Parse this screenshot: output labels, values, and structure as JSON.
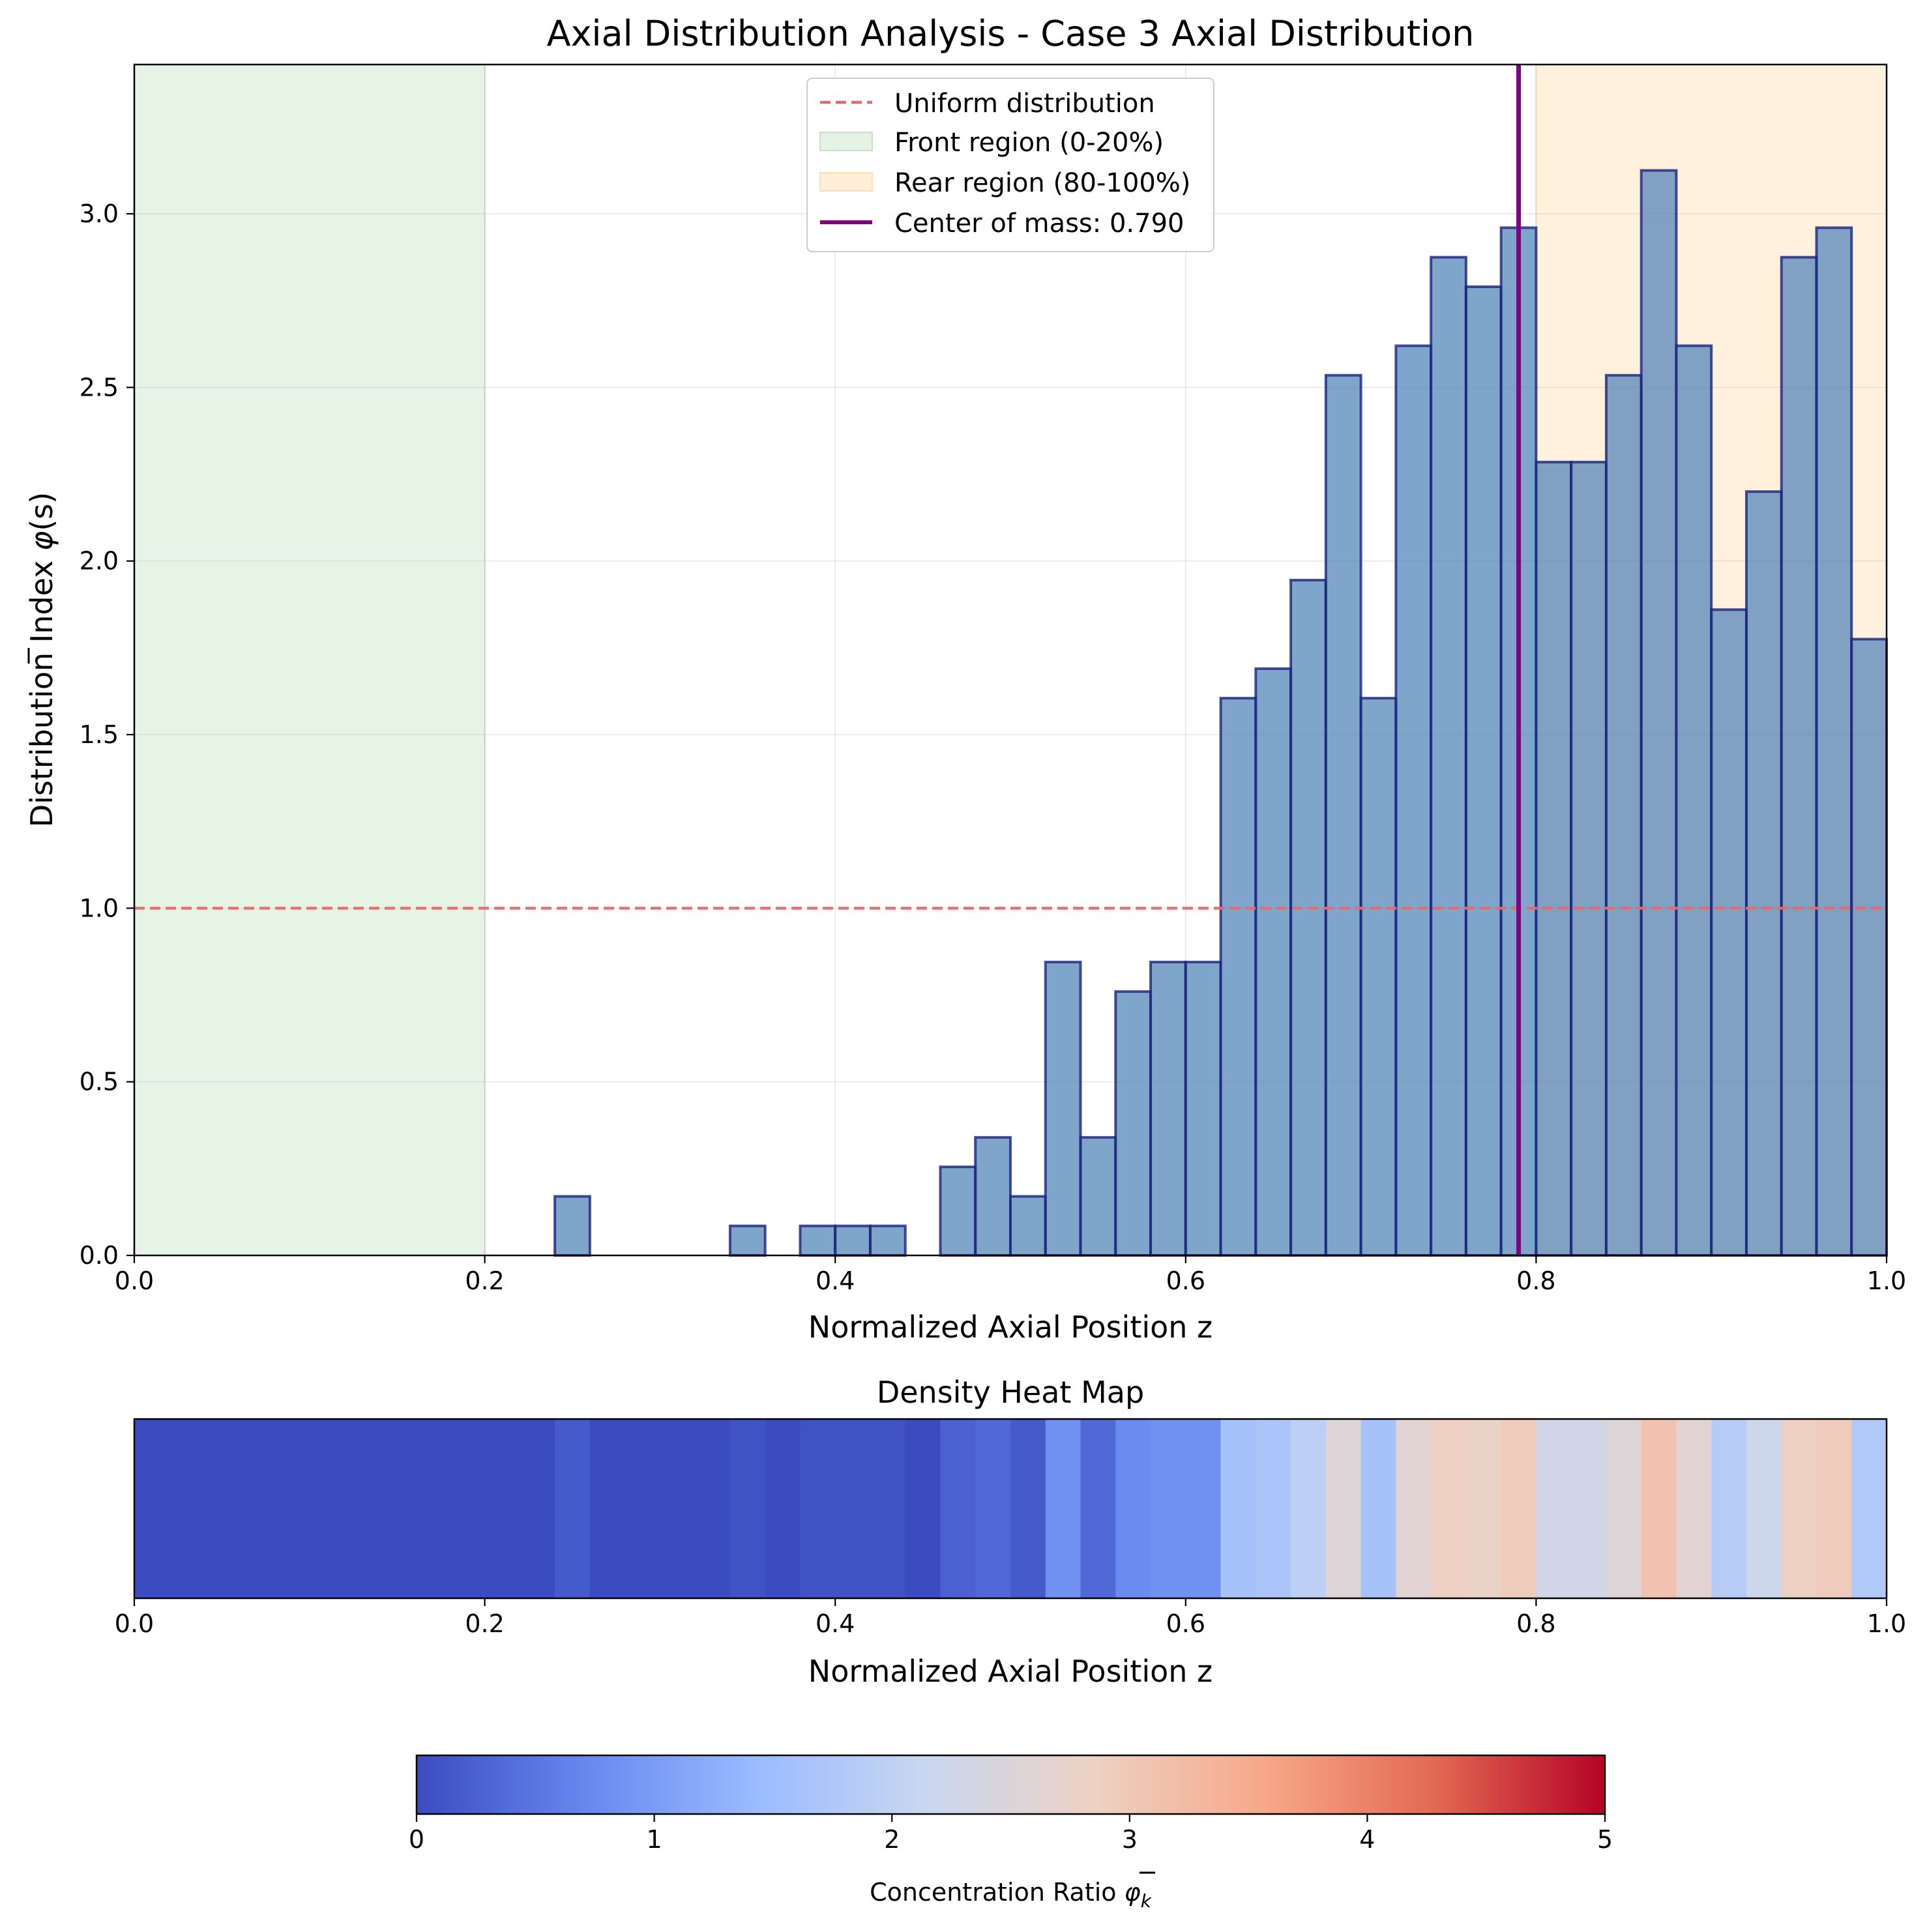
{
  "chart_data": [
    {
      "type": "bar",
      "title": "Axial Distribution Analysis - Case 3 Axial Distribution",
      "xlabel": "Normalized Axial Position z",
      "ylabel_prefix": "Distribution Index ",
      "ylabel_symbol": "φ",
      "ylabel_suffix": "(s)",
      "xlim": [
        0,
        1
      ],
      "ylim": [
        0,
        3.43
      ],
      "xticks": [
        0.0,
        0.2,
        0.4,
        0.6,
        0.8,
        1.0
      ],
      "xtick_labels": [
        "0.0",
        "0.2",
        "0.4",
        "0.6",
        "0.8",
        "1.0"
      ],
      "yticks": [
        0.0,
        0.5,
        1.0,
        1.5,
        2.0,
        2.5,
        3.0
      ],
      "ytick_labels": [
        "0.0",
        "0.5",
        "1.0",
        "1.5",
        "2.0",
        "2.5",
        "3.0"
      ],
      "grid": true,
      "bin_width": 0.02,
      "bin_starts": [
        0.0,
        0.02,
        0.04,
        0.06,
        0.08,
        0.1,
        0.12,
        0.14,
        0.16,
        0.18,
        0.2,
        0.22,
        0.24,
        0.26,
        0.28,
        0.3,
        0.32,
        0.34,
        0.36,
        0.38,
        0.4,
        0.42,
        0.44,
        0.46,
        0.48,
        0.5,
        0.52,
        0.54,
        0.56,
        0.58,
        0.6,
        0.62,
        0.64,
        0.66,
        0.68,
        0.7,
        0.72,
        0.74,
        0.76,
        0.78,
        0.8,
        0.82,
        0.84,
        0.86,
        0.88,
        0.9,
        0.92,
        0.94,
        0.96,
        0.98
      ],
      "values": [
        0,
        0,
        0,
        0,
        0,
        0,
        0,
        0,
        0,
        0,
        0,
        0,
        0.17,
        0,
        0,
        0,
        0,
        0.085,
        0,
        0.085,
        0.085,
        0.085,
        0,
        0.255,
        0.34,
        0.17,
        0.845,
        0.34,
        0.76,
        0.845,
        0.845,
        1.605,
        1.69,
        1.945,
        2.535,
        1.605,
        2.62,
        2.875,
        2.79,
        2.96,
        2.285,
        2.285,
        2.535,
        3.125,
        2.62,
        1.86,
        2.2,
        2.875,
        2.96,
        1.775
      ],
      "bar_color": "#4a7fb5",
      "bar_edge_color": "#1a237e",
      "uniform_level": 1.0,
      "uniform_label": "Uniform distribution",
      "uniform_color": "#e8696b",
      "front_region": [
        0,
        0.2
      ],
      "front_label": "Front region (0-20%)",
      "front_color": "#a5d6a7",
      "rear_region": [
        0.8,
        1.0
      ],
      "rear_label": "Rear region (80-100%)",
      "rear_color": "#ffe0b2",
      "center_of_mass": 0.79,
      "center_label": "Center of mass: 0.790",
      "center_color": "#800080",
      "legend_position": "upper-center"
    },
    {
      "type": "heatmap",
      "title": "Density Heat Map",
      "xlabel": "Normalized Axial Position z",
      "xlim": [
        0,
        1
      ],
      "xticks": [
        0.0,
        0.2,
        0.4,
        0.6,
        0.8,
        1.0
      ],
      "xtick_labels": [
        "0.0",
        "0.2",
        "0.4",
        "0.6",
        "0.8",
        "1.0"
      ],
      "colormap": "coolwarm",
      "vmin": 0,
      "vmax": 5,
      "source": "values of the histogram bins"
    },
    {
      "type": "colorbar",
      "label_prefix": "Concentration Ratio ",
      "label_symbol": "φ",
      "label_sub": "k",
      "range": [
        0,
        5
      ],
      "ticks": [
        0,
        1,
        2,
        3,
        4,
        5
      ],
      "tick_labels": [
        "0",
        "1",
        "2",
        "3",
        "4",
        "5"
      ],
      "colormap_stops": [
        "#3b4cc0",
        "#6788ee",
        "#9abbff",
        "#c9d7f0",
        "#edd1c2",
        "#f7a889",
        "#e26952",
        "#b40426"
      ]
    }
  ]
}
